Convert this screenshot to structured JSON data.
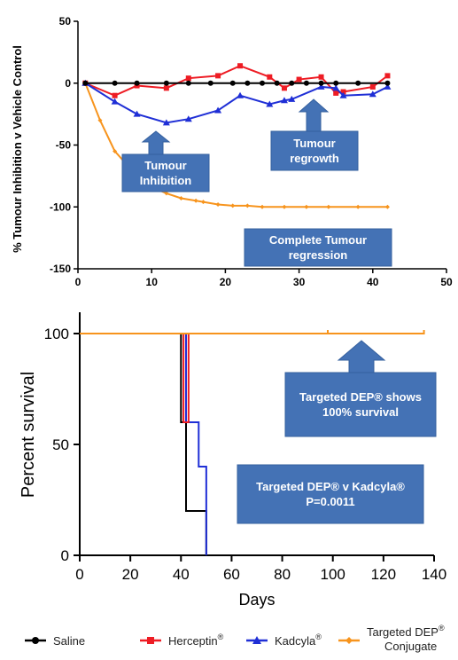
{
  "chart_data": [
    {
      "type": "line",
      "ylabel": "% Tumour Inhibition v Vehicle Control",
      "xlabel": "",
      "xlim": [
        0,
        50
      ],
      "ylim": [
        -150,
        50
      ],
      "x_ticks": [
        "0",
        "10",
        "20",
        "30",
        "40",
        "50"
      ],
      "y_ticks": [
        "50",
        "0",
        "-50",
        "-100",
        "-150"
      ],
      "grid": false,
      "series": [
        {
          "name": "Saline",
          "color": "#000000",
          "marker": "circle",
          "x": [
            1,
            5,
            8,
            12,
            15,
            18,
            21,
            23,
            25,
            27,
            29,
            31,
            33,
            35,
            38,
            42
          ],
          "y": [
            0,
            0,
            0,
            0,
            0,
            0,
            0,
            0,
            0,
            0,
            0,
            0,
            0,
            0,
            0,
            0
          ]
        },
        {
          "name": "Herceptin®",
          "color": "#ee1c24",
          "marker": "square",
          "x": [
            1,
            5,
            8,
            12,
            15,
            19,
            22,
            26,
            28,
            30,
            33,
            35,
            36,
            40,
            42
          ],
          "y": [
            0,
            -10,
            -2,
            -4,
            4,
            6,
            14,
            5,
            -4,
            3,
            5,
            -8,
            -7,
            -3,
            6
          ]
        },
        {
          "name": "Kadcyla®",
          "color": "#1f2fd6",
          "marker": "triangle",
          "x": [
            1,
            5,
            8,
            12,
            15,
            19,
            22,
            26,
            28,
            29,
            33,
            35,
            36,
            40,
            42
          ],
          "y": [
            0,
            -15,
            -25,
            -32,
            -29,
            -22,
            -10,
            -17,
            -14,
            -13,
            -3,
            -4,
            -10,
            -9,
            -3
          ]
        },
        {
          "name": "Targeted DEP® Conjugate",
          "color": "#f7941d",
          "marker": "diamond",
          "x": [
            1,
            3,
            5,
            8,
            10,
            12,
            14,
            16,
            17,
            19,
            21,
            23,
            25,
            28,
            31,
            34,
            38,
            42
          ],
          "y": [
            0,
            -30,
            -55,
            -75,
            -84,
            -89,
            -93,
            -95,
            -96,
            -98,
            -99,
            -99,
            -100,
            -100,
            -100,
            -100,
            -100,
            -100
          ]
        }
      ],
      "annotations": [
        {
          "text": [
            "Tumour",
            "Inhibition"
          ]
        },
        {
          "text": [
            "Tumour",
            "regrowth"
          ]
        },
        {
          "text": [
            "Complete Tumour",
            "regression"
          ]
        }
      ]
    },
    {
      "type": "line",
      "ylabel": "Percent survival",
      "xlabel": "Days",
      "xlim": [
        0,
        140
      ],
      "ylim": [
        0,
        100
      ],
      "x_ticks": [
        "0",
        "20",
        "40",
        "60",
        "80",
        "100",
        "120",
        "140"
      ],
      "y_ticks": [
        "100",
        "50",
        "0"
      ],
      "grid": false,
      "step": true,
      "series": [
        {
          "name": "Saline",
          "color": "#000000",
          "points": [
            [
              0,
              100
            ],
            [
              40,
              100
            ],
            [
              40,
              60
            ],
            [
              42,
              60
            ],
            [
              42,
              20
            ],
            [
              50,
              20
            ],
            [
              50,
              0
            ]
          ]
        },
        {
          "name": "Herceptin®",
          "color": "#ee1c24",
          "points": [
            [
              0,
              100
            ],
            [
              41,
              100
            ],
            [
              41,
              60
            ],
            [
              43,
              60
            ],
            [
              43,
              100
            ]
          ]
        },
        {
          "name": "Kadcyla®",
          "color": "#1f2fd6",
          "points": [
            [
              0,
              100
            ],
            [
              42,
              100
            ],
            [
              42,
              60
            ],
            [
              47,
              60
            ],
            [
              47,
              40
            ],
            [
              50,
              40
            ],
            [
              50,
              0
            ]
          ]
        },
        {
          "name": "Targeted DEP® Conjugate",
          "color": "#f7941d",
          "points": [
            [
              0,
              100
            ],
            [
              136,
              100
            ]
          ],
          "censor_marks": [
            98,
            136
          ]
        }
      ],
      "annotations": [
        {
          "text": [
            "Targeted DEP® shows",
            "100% survival"
          ]
        },
        {
          "text": [
            "Targeted DEP® v Kadcyla®",
            "P=0.0011"
          ]
        }
      ]
    }
  ],
  "legend": {
    "placement": "bottom",
    "items": [
      {
        "name": "Saline",
        "color": "#000000",
        "marker": "circle"
      },
      {
        "name": "Herceptin",
        "sup": "®",
        "color": "#ee1c24",
        "marker": "square"
      },
      {
        "name": "Kadcyla",
        "sup": "®",
        "color": "#1f2fd6",
        "marker": "triangle"
      },
      {
        "name": "Targeted DEP",
        "sup": "®",
        "line2": "Conjugate",
        "color": "#f7941d",
        "marker": "diamond"
      }
    ]
  },
  "colors": {
    "callout_fill": "#4472b5",
    "callout_stroke": "#35609e"
  }
}
